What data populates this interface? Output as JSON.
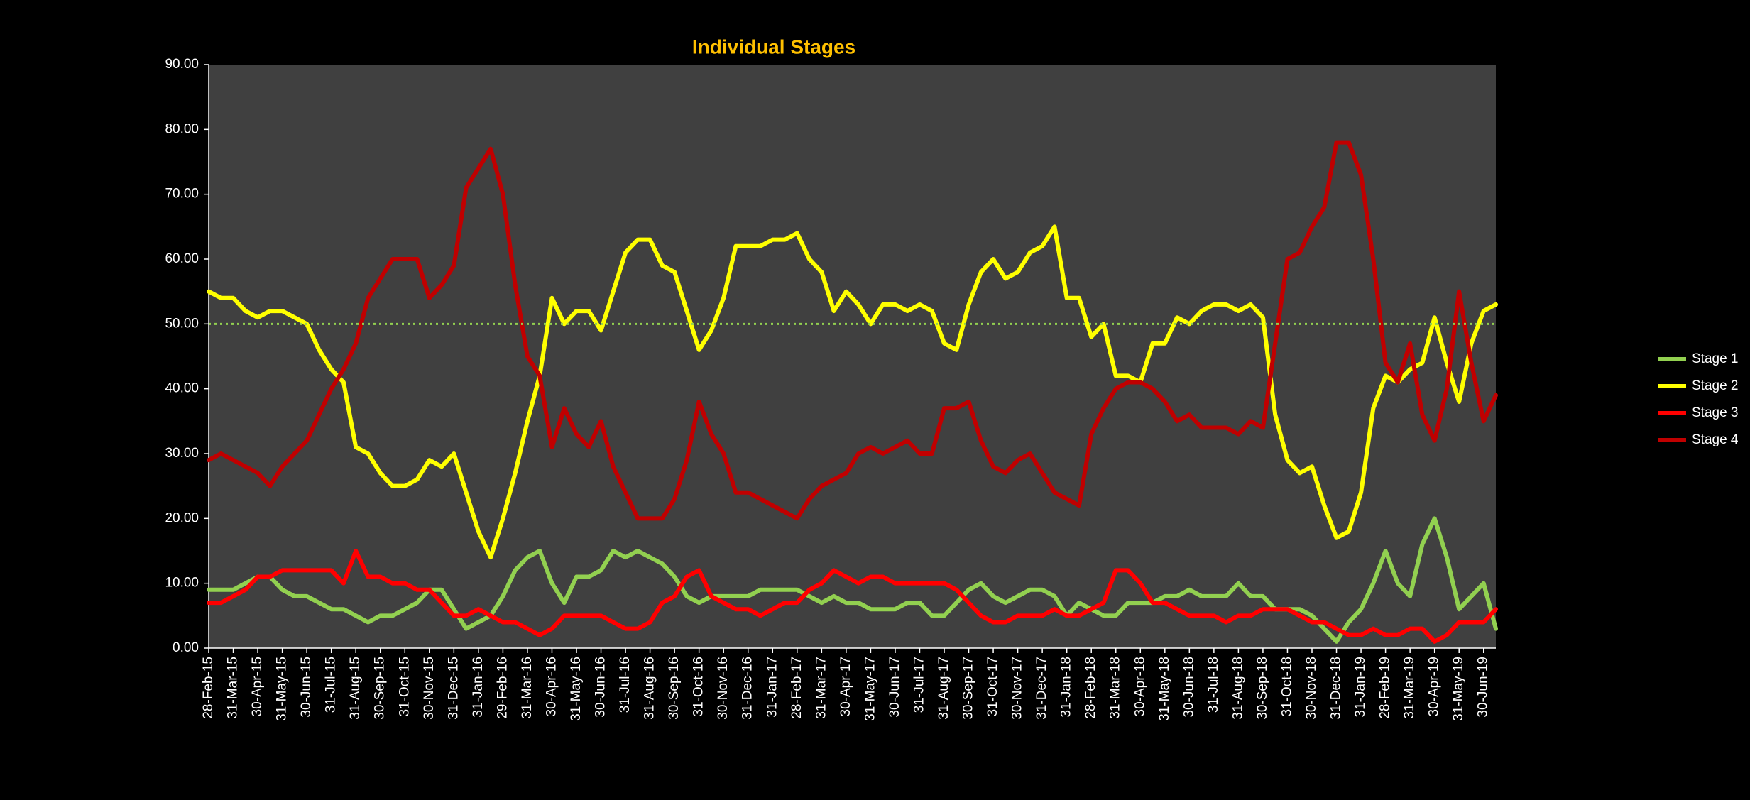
{
  "chart_data": {
    "type": "line",
    "title": "Individual Stages",
    "categories": [
      "28-Feb-15",
      null,
      "31-Mar-15",
      null,
      "30-Apr-15",
      null,
      "31-May-15",
      null,
      "30-Jun-15",
      null,
      "31-Jul-15",
      null,
      "31-Aug-15",
      null,
      "30-Sep-15",
      null,
      "31-Oct-15",
      null,
      "30-Nov-15",
      null,
      "31-Dec-15",
      null,
      "31-Jan-16",
      null,
      "29-Feb-16",
      null,
      "31-Mar-16",
      null,
      "30-Apr-16",
      null,
      "31-May-16",
      null,
      "30-Jun-16",
      null,
      "31-Jul-16",
      null,
      "31-Aug-16",
      null,
      "30-Sep-16",
      null,
      "31-Oct-16",
      null,
      "30-Nov-16",
      null,
      "31-Dec-16",
      null,
      "31-Jan-17",
      null,
      "28-Feb-17",
      null,
      "31-Mar-17",
      null,
      "30-Apr-17",
      null,
      "31-May-17",
      null,
      "30-Jun-17",
      null,
      "31-Jul-17",
      null,
      "31-Aug-17",
      null,
      "30-Sep-17",
      null,
      "31-Oct-17",
      null,
      "30-Nov-17",
      null,
      "31-Dec-17",
      null,
      "31-Jan-18",
      null,
      "28-Feb-18",
      null,
      "31-Mar-18",
      null,
      "30-Apr-18",
      null,
      "31-May-18",
      null,
      "30-Jun-18",
      null,
      "31-Jul-18",
      null,
      "31-Aug-18",
      null,
      "30-Sep-18",
      null,
      "31-Oct-18",
      null,
      "30-Nov-18",
      null,
      "31-Dec-18",
      null,
      "31-Jan-19",
      null,
      "28-Feb-19",
      null,
      "31-Mar-19",
      null,
      "30-Apr-19",
      null,
      "31-May-19",
      null,
      "30-Jun-19",
      null
    ],
    "series": [
      {
        "name": "Stage 1",
        "color": "#92d050",
        "values": [
          9,
          9,
          9,
          10,
          11,
          11,
          9,
          8,
          8,
          7,
          6,
          6,
          5,
          4,
          5,
          5,
          6,
          7,
          9,
          9,
          6,
          3,
          4,
          5,
          8,
          12,
          14,
          15,
          10,
          7,
          11,
          11,
          12,
          15,
          14,
          15,
          14,
          13,
          11,
          8,
          7,
          8,
          8,
          8,
          8,
          9,
          9,
          9,
          9,
          8,
          7,
          8,
          7,
          7,
          6,
          6,
          6,
          7,
          7,
          5,
          5,
          7,
          9,
          10,
          8,
          7,
          8,
          9,
          9,
          8,
          5,
          7,
          6,
          5,
          5,
          7,
          7,
          7,
          8,
          8,
          9,
          8,
          8,
          8,
          10,
          8,
          8,
          6,
          6,
          6,
          5,
          3,
          1,
          4,
          6,
          10,
          15,
          10,
          8,
          16,
          20,
          14,
          6,
          8,
          10,
          3
        ]
      },
      {
        "name": "Stage 2",
        "color": "#ffff00",
        "values": [
          55,
          54,
          54,
          52,
          51,
          52,
          52,
          51,
          50,
          46,
          43,
          41,
          31,
          30,
          27,
          25,
          25,
          26,
          29,
          28,
          30,
          24,
          18,
          14,
          20,
          27,
          35,
          42,
          54,
          50,
          52,
          52,
          49,
          55,
          61,
          63,
          63,
          59,
          58,
          52,
          46,
          49,
          54,
          62,
          62,
          62,
          63,
          63,
          64,
          60,
          58,
          52,
          55,
          53,
          50,
          53,
          53,
          52,
          53,
          52,
          47,
          46,
          53,
          58,
          60,
          57,
          58,
          61,
          62,
          65,
          54,
          54,
          48,
          50,
          42,
          42,
          41,
          47,
          47,
          51,
          50,
          52,
          53,
          53,
          52,
          53,
          51,
          36,
          29,
          27,
          28,
          22,
          17,
          18,
          24,
          37,
          42,
          41,
          43,
          44,
          51,
          44,
          38,
          47,
          52,
          53
        ]
      },
      {
        "name": "Stage 3",
        "color": "#ff0000",
        "values": [
          7,
          7,
          8,
          9,
          11,
          11,
          12,
          12,
          12,
          12,
          12,
          10,
          15,
          11,
          11,
          10,
          10,
          9,
          9,
          7,
          5,
          5,
          6,
          5,
          4,
          4,
          3,
          2,
          3,
          5,
          5,
          5,
          5,
          4,
          3,
          3,
          4,
          7,
          8,
          11,
          12,
          8,
          7,
          6,
          6,
          5,
          6,
          7,
          7,
          9,
          10,
          12,
          11,
          10,
          11,
          11,
          10,
          10,
          10,
          10,
          10,
          9,
          7,
          5,
          4,
          4,
          5,
          5,
          5,
          6,
          5,
          5,
          6,
          7,
          12,
          12,
          10,
          7,
          7,
          6,
          5,
          5,
          5,
          4,
          5,
          5,
          6,
          6,
          6,
          5,
          4,
          4,
          3,
          2,
          2,
          3,
          2,
          2,
          3,
          3,
          1,
          2,
          4,
          4,
          4,
          6
        ]
      },
      {
        "name": "Stage 4",
        "color": "#c00000",
        "values": [
          29,
          30,
          29,
          28,
          27,
          25,
          28,
          30,
          32,
          36,
          40,
          43,
          47,
          54,
          57,
          60,
          60,
          60,
          54,
          56,
          59,
          71,
          74,
          77,
          70,
          56,
          45,
          42,
          31,
          37,
          33,
          31,
          35,
          28,
          24,
          20,
          20,
          20,
          23,
          29,
          38,
          33,
          30,
          24,
          24,
          23,
          22,
          21,
          20,
          23,
          25,
          26,
          27,
          30,
          31,
          30,
          31,
          32,
          30,
          30,
          37,
          37,
          38,
          32,
          28,
          27,
          29,
          30,
          27,
          24,
          23,
          22,
          33,
          37,
          40,
          41,
          41,
          40,
          38,
          35,
          36,
          34,
          34,
          34,
          33,
          35,
          34,
          47,
          60,
          61,
          65,
          68,
          78,
          78,
          73,
          60,
          44,
          41,
          47,
          36,
          32,
          40,
          55,
          44,
          35,
          39
        ]
      }
    ],
    "reference_line": {
      "value": 50,
      "color": "#92d050"
    },
    "ylim": [
      0,
      90
    ],
    "yticks": [
      {
        "value": 0,
        "label": "0.00"
      },
      {
        "value": 10,
        "label": "10.00"
      },
      {
        "value": 20,
        "label": "20.00"
      },
      {
        "value": 30,
        "label": "30.00"
      },
      {
        "value": 40,
        "label": "40.00"
      },
      {
        "value": 50,
        "label": "50.00"
      },
      {
        "value": 60,
        "label": "60.00"
      },
      {
        "value": 70,
        "label": "70.00"
      },
      {
        "value": 80,
        "label": "80.00"
      },
      {
        "value": 90,
        "label": "90.00"
      }
    ],
    "legend": "right"
  }
}
